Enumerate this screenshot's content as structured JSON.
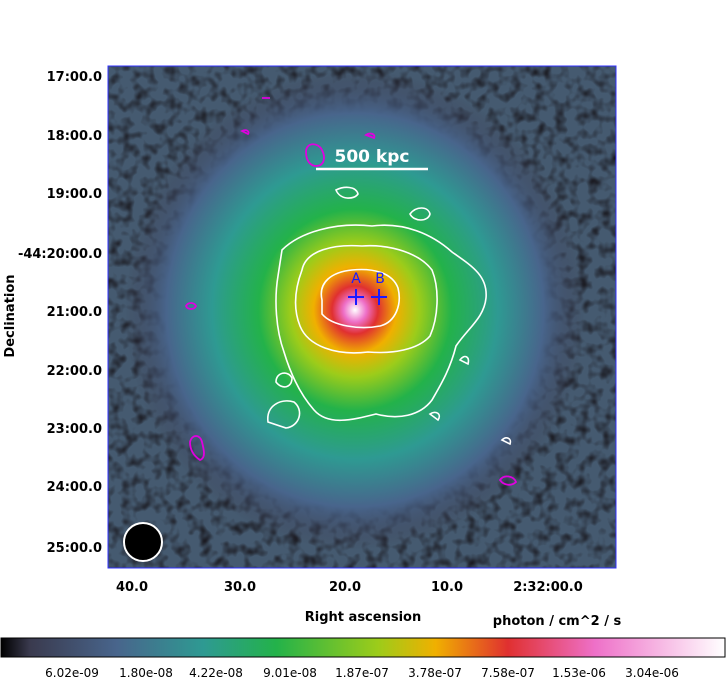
{
  "chart_data": {
    "type": "heatmap",
    "title": "",
    "xlabel": "Right ascension",
    "ylabel": "Declination",
    "colorbar_label": "photon / cm^2 / s",
    "x_ticks": [
      "40.0",
      "30.0",
      "20.0",
      "10.0",
      "2:32:00.0"
    ],
    "y_ticks": [
      "17:00.0",
      "18:00.0",
      "19:00.0",
      "-44:20:00.0",
      "21:00.0",
      "22:00.0",
      "23:00.0",
      "24:00.0",
      "25:00.0"
    ],
    "colorbar_ticks": [
      "6.02e-09",
      "1.80e-08",
      "4.22e-08",
      "9.01e-08",
      "1.87e-07",
      "3.78e-07",
      "7.58e-07",
      "1.53e-06",
      "3.04e-06"
    ],
    "scale_bar_label": "500 kpc",
    "markers": [
      {
        "label": "A",
        "ra_offset_s": 18.5,
        "dec_arcmin": 20.75
      },
      {
        "label": "B",
        "ra_offset_s": 16.5,
        "dec_arcmin": 20.75
      }
    ],
    "contour_colors": {
      "white": "#ffffff",
      "magenta": "#e000e0"
    },
    "marker_color": "#1a1aff",
    "colormap": [
      "#000000",
      "#3a3a4e",
      "#48658c",
      "#2e9a92",
      "#23b24a",
      "#9ccc1a",
      "#f0b000",
      "#e03030",
      "#ee70c8",
      "#ffffff"
    ]
  }
}
